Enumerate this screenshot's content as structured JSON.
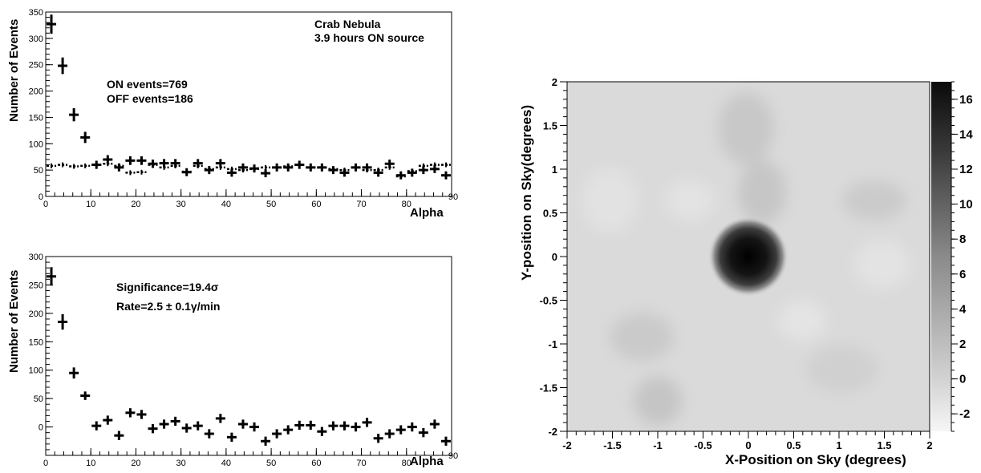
{
  "chart_data": [
    {
      "type": "scatter",
      "xlabel": "Alpha",
      "ylabel": "Number of Events",
      "xlim": [
        0,
        90
      ],
      "ylim": [
        0,
        350
      ],
      "xticks": [
        0,
        10,
        20,
        30,
        40,
        50,
        60,
        70,
        80,
        90
      ],
      "yticks": [
        0,
        50,
        100,
        150,
        200,
        250,
        300,
        350
      ],
      "annotations": [
        "Crab Nebula",
        "3.9 hours ON source",
        "ON events=769",
        "OFF events=186"
      ],
      "series": [
        {
          "style": "solid-crosses",
          "x": [
            1.25,
            3.75,
            6.25,
            8.75,
            11.25,
            13.75,
            16.25,
            18.75,
            21.25,
            23.75,
            26.25,
            28.75,
            31.25,
            33.75,
            36.25,
            38.75,
            41.25,
            43.75,
            46.25,
            48.75,
            51.25,
            53.75,
            56.25,
            58.75,
            61.25,
            63.75,
            66.25,
            68.75,
            71.25,
            73.75,
            76.25,
            78.75,
            81.25,
            83.75,
            86.25,
            88.75
          ],
          "y": [
            327,
            248,
            155,
            112,
            60,
            70,
            55,
            68,
            68,
            62,
            63,
            63,
            46,
            63,
            50,
            63,
            45,
            55,
            53,
            44,
            55,
            55,
            60,
            55,
            55,
            50,
            45,
            55,
            55,
            45,
            62,
            40,
            45,
            50,
            52,
            40
          ]
        },
        {
          "style": "dashed-crosses",
          "x": [
            1.25,
            3.75,
            6.25,
            8.75,
            11.25,
            13.75,
            16.25,
            18.75,
            21.25,
            23.75,
            26.25,
            28.75,
            31.25,
            33.75,
            36.25,
            38.75,
            41.25,
            43.75,
            46.25,
            48.75,
            51.25,
            53.75,
            56.25,
            58.75,
            61.25,
            63.75,
            66.25,
            68.75,
            71.25,
            73.75,
            76.25,
            78.75,
            81.25,
            83.75,
            86.25,
            88.75
          ],
          "y": [
            58,
            60,
            57,
            58,
            60,
            62,
            58,
            45,
            46,
            60,
            55,
            58,
            47,
            58,
            52,
            55,
            52,
            50,
            52,
            55,
            55,
            57,
            60,
            55,
            55,
            52,
            50,
            55,
            50,
            50,
            55,
            38,
            48,
            58,
            60,
            60
          ]
        }
      ]
    },
    {
      "type": "scatter",
      "xlabel": "Alpha",
      "ylabel": "Number of Events",
      "xlim": [
        0,
        90
      ],
      "ylim": [
        -50,
        300
      ],
      "xticks": [
        0,
        10,
        20,
        30,
        40,
        50,
        60,
        70,
        80,
        90
      ],
      "yticks": [
        0,
        50,
        100,
        150,
        200,
        250,
        300
      ],
      "annotations": [
        "Significance=19.4σ",
        "Rate=2.5 ± 0.1γ/min"
      ],
      "series": [
        {
          "style": "solid-crosses",
          "x": [
            1.25,
            3.75,
            6.25,
            8.75,
            11.25,
            13.75,
            16.25,
            18.75,
            21.25,
            23.75,
            26.25,
            28.75,
            31.25,
            33.75,
            36.25,
            38.75,
            41.25,
            43.75,
            46.25,
            48.75,
            51.25,
            53.75,
            56.25,
            58.75,
            61.25,
            63.75,
            66.25,
            68.75,
            71.25,
            73.75,
            76.25,
            78.75,
            81.25,
            83.75,
            86.25,
            88.75
          ],
          "y": [
            265,
            185,
            95,
            55,
            2,
            12,
            -15,
            25,
            22,
            -3,
            5,
            10,
            -2,
            2,
            -12,
            15,
            -18,
            5,
            0,
            -25,
            -12,
            -5,
            3,
            3,
            -8,
            2,
            2,
            0,
            8,
            -20,
            -12,
            -5,
            0,
            -10,
            5,
            -25
          ]
        }
      ]
    },
    {
      "type": "heatmap",
      "xlabel": "X-Position on Sky (degrees)",
      "ylabel": "Y-position on Sky(degrees)",
      "xlim": [
        -2,
        2
      ],
      "ylim": [
        -2,
        2
      ],
      "xticks": [
        -2,
        -1.5,
        -1,
        -0.5,
        0,
        0.5,
        1,
        1.5,
        2
      ],
      "yticks": [
        -2,
        -1.5,
        -1,
        -0.5,
        0,
        0.5,
        1,
        1.5,
        2
      ],
      "colorbar_ticks": [
        -2,
        0,
        2,
        4,
        6,
        8,
        10,
        12,
        14,
        16
      ],
      "colorbar_range": [
        -3,
        17
      ],
      "peak": {
        "x": 0,
        "y": 0,
        "value": 17
      },
      "background_level": 0,
      "colorscale": "grayscale (light = low, black = high)"
    }
  ]
}
